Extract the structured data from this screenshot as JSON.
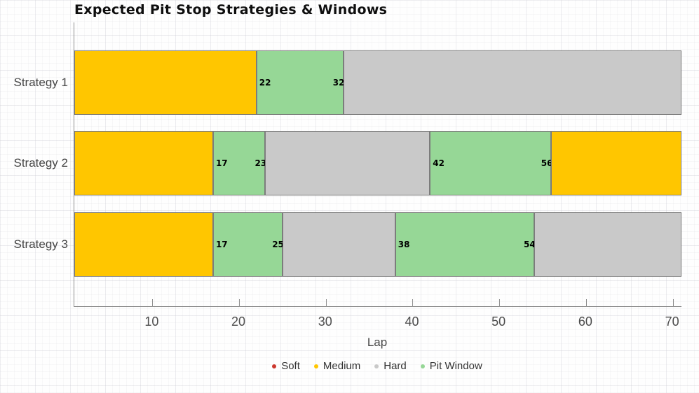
{
  "chart_data": {
    "type": "bar",
    "orientation": "horizontal",
    "stacked": true,
    "title": "Expected Pit Stop Strategies & Windows",
    "xlabel": "Lap",
    "ylabel": "",
    "xlim": [
      1,
      71
    ],
    "xticks": [
      10,
      20,
      30,
      40,
      50,
      60,
      70
    ],
    "grid": "graph-paper background",
    "legend_position": "bottom-center",
    "categories": [
      "Strategy 1",
      "Strategy 2",
      "Strategy 3"
    ],
    "rows": [
      {
        "label": "Strategy 1",
        "segments": [
          {
            "compound": "Medium",
            "start": 1,
            "end": 22,
            "show_labels": false
          },
          {
            "compound": "Pit Window",
            "start": 22,
            "end": 32,
            "show_labels": true
          },
          {
            "compound": "Hard",
            "start": 32,
            "end": 71,
            "show_labels": false
          }
        ]
      },
      {
        "label": "Strategy 2",
        "segments": [
          {
            "compound": "Medium",
            "start": 1,
            "end": 17,
            "show_labels": false
          },
          {
            "compound": "Pit Window",
            "start": 17,
            "end": 23,
            "show_labels": true
          },
          {
            "compound": "Hard",
            "start": 23,
            "end": 42,
            "show_labels": false
          },
          {
            "compound": "Pit Window",
            "start": 42,
            "end": 56,
            "show_labels": true
          },
          {
            "compound": "Medium",
            "start": 56,
            "end": 71,
            "show_labels": false
          }
        ]
      },
      {
        "label": "Strategy 3",
        "segments": [
          {
            "compound": "Medium",
            "start": 1,
            "end": 17,
            "show_labels": false
          },
          {
            "compound": "Pit Window",
            "start": 17,
            "end": 25,
            "show_labels": true
          },
          {
            "compound": "Hard",
            "start": 25,
            "end": 38,
            "show_labels": false
          },
          {
            "compound": "Pit Window",
            "start": 38,
            "end": 54,
            "show_labels": true
          },
          {
            "compound": "Hard",
            "start": 54,
            "end": 71,
            "show_labels": false
          }
        ]
      }
    ],
    "colors": {
      "Soft": "#cc382e",
      "Medium": "#ffc600",
      "Hard": "#c9c9c9",
      "Pit Window": "#96d796"
    },
    "legend": [
      {
        "label": "Soft",
        "color": "#cc382e"
      },
      {
        "label": "Medium",
        "color": "#ffc600"
      },
      {
        "label": "Hard",
        "color": "#c9c9c9"
      },
      {
        "label": "Pit Window",
        "color": "#96d796"
      }
    ]
  }
}
